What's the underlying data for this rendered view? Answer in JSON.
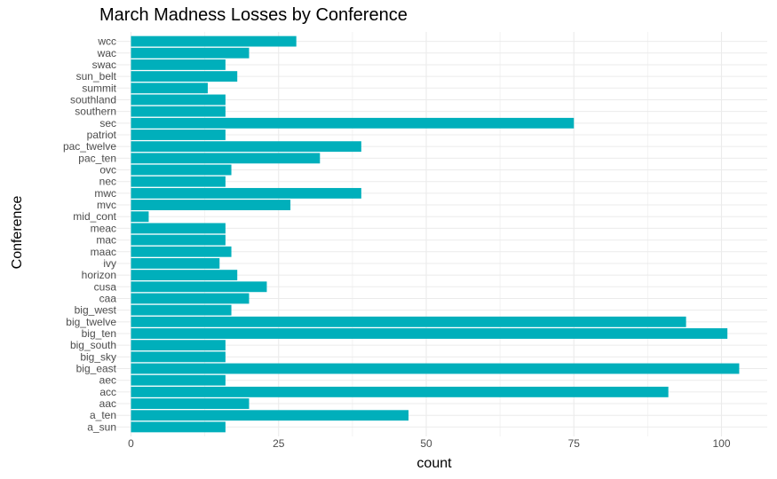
{
  "chart_data": {
    "type": "bar",
    "orientation": "horizontal",
    "title": "March Madness Losses by Conference",
    "xlabel": "count",
    "ylabel": "Conference",
    "xlim": [
      0,
      106
    ],
    "x_ticks": [
      0,
      25,
      50,
      75,
      100
    ],
    "grid": true,
    "bar_color": "#00AFBB",
    "categories": [
      "a_sun",
      "a_ten",
      "aac",
      "acc",
      "aec",
      "big_east",
      "big_sky",
      "big_south",
      "big_ten",
      "big_twelve",
      "big_west",
      "caa",
      "cusa",
      "horizon",
      "ivy",
      "maac",
      "mac",
      "meac",
      "mid_cont",
      "mvc",
      "mwc",
      "nec",
      "ovc",
      "pac_ten",
      "pac_twelve",
      "patriot",
      "sec",
      "southern",
      "southland",
      "summit",
      "sun_belt",
      "swac",
      "wac",
      "wcc"
    ],
    "values": [
      16,
      47,
      20,
      91,
      16,
      103,
      16,
      16,
      101,
      94,
      17,
      20,
      23,
      18,
      15,
      17,
      16,
      16,
      3,
      27,
      39,
      16,
      17,
      32,
      39,
      16,
      75,
      16,
      16,
      13,
      18,
      16,
      20,
      28
    ]
  }
}
